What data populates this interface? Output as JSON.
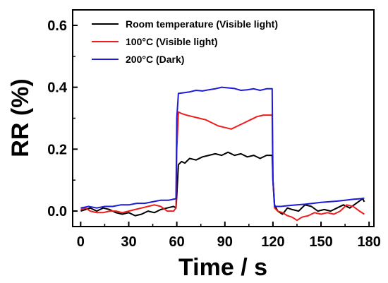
{
  "chart_data": {
    "type": "line",
    "xlabel": "Time / s",
    "ylabel": "RR (%)",
    "xlim": [
      -5,
      183
    ],
    "ylim": [
      -0.05,
      0.65
    ],
    "xticks": [
      0,
      30,
      60,
      90,
      120,
      150,
      180
    ],
    "yticks": [
      0.0,
      0.2,
      0.4,
      0.6
    ],
    "xtick_labels": [
      "0",
      "30",
      "60",
      "90",
      "120",
      "150",
      "180"
    ],
    "ytick_labels": [
      "0.0",
      "0.2",
      "0.4",
      "0.6"
    ],
    "legend_placement": "top-left",
    "grid": false,
    "series": [
      {
        "name": "Room temperature (Visible light)",
        "color": "#000000",
        "x": [
          0,
          3,
          6,
          10,
          14,
          18,
          22,
          26,
          30,
          34,
          38,
          42,
          46,
          50,
          54,
          58,
          59.5,
          60,
          61,
          63,
          65,
          68,
          72,
          76,
          80,
          84,
          88,
          92,
          96,
          100,
          104,
          108,
          112,
          116,
          119.5,
          120,
          121,
          123,
          126,
          129,
          132,
          136,
          140,
          144,
          148,
          152,
          156,
          160,
          164,
          168,
          172,
          176,
          177
        ],
        "y": [
          0.0,
          0.005,
          0.01,
          0.0,
          0.01,
          0.005,
          -0.005,
          -0.01,
          -0.005,
          -0.015,
          -0.01,
          0.0,
          -0.005,
          0.005,
          0.01,
          0.015,
          0.01,
          0.05,
          0.15,
          0.16,
          0.155,
          0.17,
          0.165,
          0.175,
          0.18,
          0.185,
          0.18,
          0.19,
          0.18,
          0.185,
          0.175,
          0.18,
          0.17,
          0.18,
          0.18,
          0.1,
          0.02,
          0.0,
          -0.01,
          0.01,
          0.005,
          0.0,
          0.02,
          0.015,
          0.0,
          0.005,
          0.0,
          0.01,
          0.02,
          0.01,
          0.025,
          0.04,
          0.03
        ]
      },
      {
        "name": "100°C (Visible light)",
        "color": "#ee1c1c",
        "x": [
          0,
          3,
          6,
          10,
          14,
          18,
          22,
          26,
          30,
          34,
          38,
          42,
          46,
          50,
          54,
          58,
          59.5,
          60,
          61,
          63,
          66,
          70,
          74,
          78,
          82,
          86,
          90,
          94,
          98,
          102,
          106,
          110,
          114,
          119.5,
          120,
          121,
          123,
          126,
          129,
          132,
          135,
          138,
          142,
          146,
          150,
          154,
          158,
          162,
          166,
          170,
          174,
          177
        ],
        "y": [
          0.005,
          0.01,
          0.0,
          -0.005,
          -0.005,
          0.0,
          0.0,
          -0.005,
          0.0,
          0.005,
          0.01,
          0.015,
          0.02,
          0.015,
          0.0,
          0.0,
          0.01,
          0.2,
          0.32,
          0.315,
          0.31,
          0.305,
          0.3,
          0.295,
          0.285,
          0.275,
          0.27,
          0.265,
          0.275,
          0.285,
          0.295,
          0.305,
          0.31,
          0.31,
          0.1,
          0.01,
          0.0,
          -0.005,
          -0.015,
          -0.02,
          -0.03,
          -0.02,
          -0.015,
          -0.005,
          -0.01,
          -0.005,
          -0.01,
          0.0,
          0.02,
          0.015,
          0.0,
          -0.01
        ]
      },
      {
        "name": "200°C (Dark)",
        "color": "#1c1cd8",
        "x": [
          0,
          5,
          10,
          15,
          20,
          25,
          30,
          35,
          40,
          45,
          50,
          55,
          59.5,
          60,
          61,
          64,
          68,
          72,
          76,
          80,
          84,
          88,
          92,
          96,
          100,
          104,
          108,
          112,
          116,
          119.5,
          120,
          121,
          125,
          130,
          135,
          140,
          145,
          150,
          155,
          160,
          165,
          170,
          175,
          177
        ],
        "y": [
          0.01,
          0.015,
          0.01,
          0.015,
          0.015,
          0.02,
          0.02,
          0.025,
          0.025,
          0.03,
          0.035,
          0.035,
          0.04,
          0.3,
          0.38,
          0.382,
          0.385,
          0.39,
          0.388,
          0.392,
          0.395,
          0.4,
          0.398,
          0.396,
          0.39,
          0.392,
          0.395,
          0.39,
          0.395,
          0.395,
          0.1,
          0.015,
          0.015,
          0.018,
          0.02,
          0.022,
          0.025,
          0.028,
          0.03,
          0.032,
          0.035,
          0.038,
          0.04,
          0.042
        ]
      }
    ]
  }
}
